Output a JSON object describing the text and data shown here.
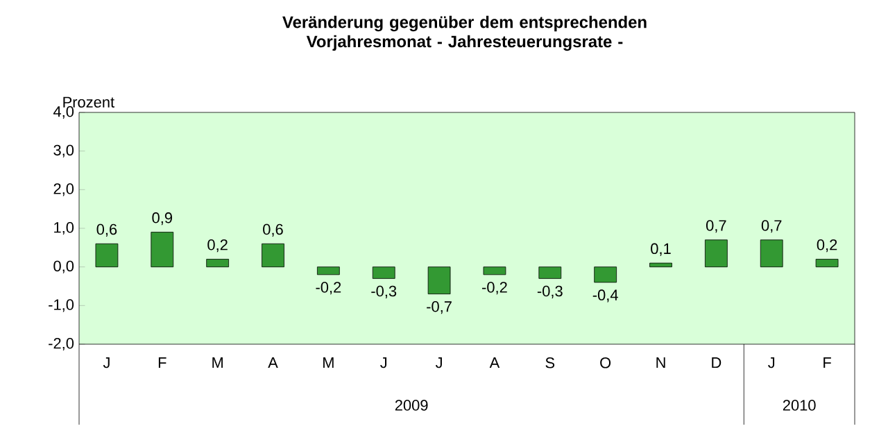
{
  "chart_data": {
    "type": "bar",
    "title": "Veränderung gegenüber dem entsprechenden Vorjahresmonat - Jahresteuerungsrate -",
    "ylabel": "Prozent",
    "categories": [
      "J",
      "F",
      "M",
      "A",
      "M",
      "J",
      "J",
      "A",
      "S",
      "O",
      "N",
      "D",
      "J",
      "F"
    ],
    "values": [
      0.6,
      0.9,
      0.2,
      0.6,
      -0.2,
      -0.3,
      -0.7,
      -0.2,
      -0.3,
      -0.4,
      0.1,
      0.7,
      0.7,
      0.2
    ],
    "value_labels": [
      "0,6",
      "0,9",
      "0,2",
      "0,6",
      "-0,2",
      "-0,3",
      "-0,7",
      "-0,2",
      "-0,3",
      "-0,4",
      "0,1",
      "0,7",
      "0,7",
      "0,2"
    ],
    "color": "#339933",
    "ylim": [
      -2,
      4
    ],
    "yticks": [
      {
        "value": -2,
        "label": "-2,0"
      },
      {
        "value": -1,
        "label": "-1,0"
      },
      {
        "value": 0,
        "label": "0,0"
      },
      {
        "value": 1,
        "label": "1,0"
      },
      {
        "value": 2,
        "label": "2,0"
      },
      {
        "value": 3,
        "label": "3,0"
      },
      {
        "value": 4,
        "label": "4,0"
      }
    ],
    "annotations": [
      "2009",
      "2010"
    ],
    "grid": false
  }
}
